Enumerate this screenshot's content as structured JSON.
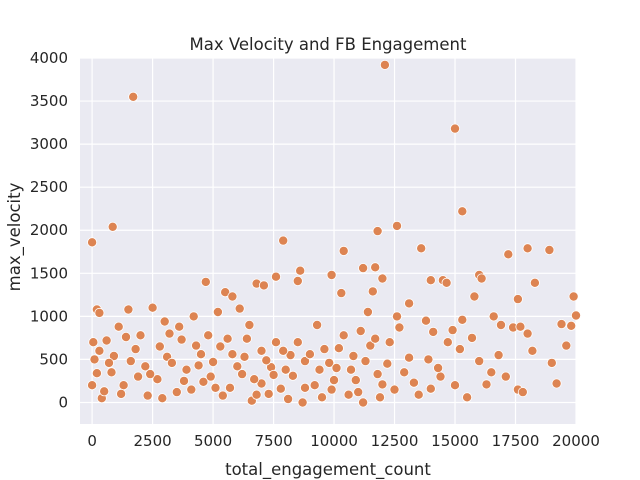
{
  "chart_data": {
    "type": "scatter",
    "title": "Max Velocity and FB Engagement",
    "xlabel": "total_engagement_count",
    "ylabel": "max_velocity",
    "xlim": [
      -500,
      20000
    ],
    "ylim": [
      -250,
      4000
    ],
    "x_ticks": [
      "0",
      "2500",
      "5000",
      "7500",
      "10000",
      "12500",
      "15000",
      "17500",
      "20000"
    ],
    "y_ticks": [
      "0",
      "500",
      "1000",
      "1500",
      "2000",
      "2500",
      "3000",
      "3500",
      "4000"
    ],
    "grid": true,
    "background_color": "#eaeaf2",
    "grid_color": "#ffffff",
    "point_color": "#dd8452",
    "point_edge_color": "#ffffff",
    "points": [
      [
        0,
        1860
      ],
      [
        200,
        1080
      ],
      [
        300,
        1040
      ],
      [
        850,
        2040
      ],
      [
        1700,
        3550
      ],
      [
        12100,
        3920
      ],
      [
        15000,
        3180
      ],
      [
        15300,
        2220
      ],
      [
        7900,
        1880
      ],
      [
        11800,
        1990
      ],
      [
        12600,
        2050
      ],
      [
        13600,
        1790
      ],
      [
        18000,
        1790
      ],
      [
        18900,
        1770
      ],
      [
        17200,
        1720
      ],
      [
        16000,
        1480
      ],
      [
        16100,
        1440
      ],
      [
        10400,
        1760
      ],
      [
        9900,
        1480
      ],
      [
        11200,
        1560
      ],
      [
        11700,
        1570
      ],
      [
        12000,
        1440
      ],
      [
        14500,
        1420
      ],
      [
        14650,
        1390
      ],
      [
        14000,
        1420
      ],
      [
        18300,
        1390
      ],
      [
        17600,
        1200
      ],
      [
        19900,
        1230
      ],
      [
        15800,
        1230
      ],
      [
        4700,
        1400
      ],
      [
        5500,
        1280
      ],
      [
        5800,
        1230
      ],
      [
        6800,
        1380
      ],
      [
        7100,
        1360
      ],
      [
        7600,
        1460
      ],
      [
        8500,
        1410
      ],
      [
        8600,
        1530
      ],
      [
        10300,
        1270
      ],
      [
        11600,
        1290
      ],
      [
        11400,
        1050
      ],
      [
        12600,
        1000
      ],
      [
        13100,
        1150
      ],
      [
        13800,
        950
      ],
      [
        14100,
        820
      ],
      [
        15300,
        960
      ],
      [
        16600,
        1000
      ],
      [
        16900,
        900
      ],
      [
        17400,
        870
      ],
      [
        17700,
        880
      ],
      [
        19400,
        910
      ],
      [
        19800,
        890
      ],
      [
        20000,
        1010
      ],
      [
        13900,
        500
      ],
      [
        14400,
        300
      ],
      [
        15000,
        200
      ],
      [
        15500,
        60
      ],
      [
        16000,
        480
      ],
      [
        16500,
        350
      ],
      [
        17100,
        300
      ],
      [
        17600,
        150
      ],
      [
        18000,
        800
      ],
      [
        18200,
        600
      ],
      [
        19000,
        460
      ],
      [
        19200,
        220
      ],
      [
        19600,
        660
      ],
      [
        17800,
        120
      ],
      [
        16800,
        550
      ],
      [
        15700,
        750
      ],
      [
        14700,
        700
      ],
      [
        12200,
        450
      ],
      [
        12900,
        350
      ],
      [
        13300,
        230
      ],
      [
        12500,
        150
      ],
      [
        11900,
        60
      ],
      [
        11200,
        0
      ],
      [
        10600,
        90
      ],
      [
        9900,
        150
      ],
      [
        9400,
        380
      ],
      [
        8800,
        480
      ],
      [
        8200,
        550
      ],
      [
        7600,
        700
      ],
      [
        7000,
        600
      ],
      [
        6500,
        900
      ],
      [
        6100,
        1090
      ],
      [
        5200,
        1050
      ],
      [
        4800,
        780
      ],
      [
        4200,
        1000
      ],
      [
        3600,
        880
      ],
      [
        3000,
        940
      ],
      [
        2500,
        1100
      ],
      [
        1500,
        1080
      ],
      [
        1100,
        880
      ],
      [
        600,
        720
      ],
      [
        300,
        600
      ],
      [
        100,
        500
      ],
      [
        0,
        200
      ],
      [
        50,
        700
      ],
      [
        400,
        50
      ],
      [
        800,
        350
      ],
      [
        1300,
        200
      ],
      [
        1800,
        620
      ],
      [
        2200,
        420
      ],
      [
        2700,
        270
      ],
      [
        3100,
        530
      ],
      [
        3500,
        120
      ],
      [
        3900,
        380
      ],
      [
        4300,
        660
      ],
      [
        4600,
        240
      ],
      [
        5000,
        470
      ],
      [
        5400,
        80
      ],
      [
        5800,
        560
      ],
      [
        6200,
        330
      ],
      [
        6600,
        20
      ],
      [
        7000,
        220
      ],
      [
        7400,
        410
      ],
      [
        7800,
        160
      ],
      [
        8300,
        310
      ],
      [
        8700,
        0
      ],
      [
        9200,
        200
      ],
      [
        9600,
        620
      ],
      [
        10000,
        260
      ],
      [
        10400,
        780
      ],
      [
        10800,
        540
      ],
      [
        11100,
        830
      ],
      [
        11500,
        660
      ],
      [
        11800,
        330
      ],
      [
        12300,
        700
      ],
      [
        12700,
        870
      ],
      [
        13100,
        520
      ],
      [
        13500,
        90
      ],
      [
        14000,
        160
      ],
      [
        14300,
        400
      ],
      [
        14900,
        840
      ],
      [
        15200,
        620
      ],
      [
        16300,
        210
      ],
      [
        500,
        130
      ],
      [
        900,
        540
      ],
      [
        1400,
        760
      ],
      [
        1900,
        300
      ],
      [
        2300,
        80
      ],
      [
        2800,
        650
      ],
      [
        3300,
        460
      ],
      [
        3700,
        730
      ],
      [
        4100,
        150
      ],
      [
        4500,
        560
      ],
      [
        4900,
        300
      ],
      [
        5300,
        650
      ],
      [
        5700,
        170
      ],
      [
        6000,
        420
      ],
      [
        6400,
        740
      ],
      [
        6800,
        90
      ],
      [
        7200,
        490
      ],
      [
        7500,
        320
      ],
      [
        7900,
        600
      ],
      [
        8100,
        40
      ],
      [
        8500,
        700
      ],
      [
        9000,
        560
      ],
      [
        9300,
        900
      ],
      [
        9800,
        460
      ],
      [
        10200,
        630
      ],
      [
        10700,
        380
      ],
      [
        11000,
        120
      ],
      [
        11300,
        480
      ],
      [
        11700,
        740
      ],
      [
        12000,
        210
      ],
      [
        200,
        340
      ],
      [
        700,
        460
      ],
      [
        1200,
        100
      ],
      [
        1600,
        480
      ],
      [
        2000,
        780
      ],
      [
        2400,
        330
      ],
      [
        2900,
        50
      ],
      [
        3200,
        800
      ],
      [
        3800,
        250
      ],
      [
        4400,
        430
      ],
      [
        5100,
        170
      ],
      [
        5600,
        740
      ],
      [
        6300,
        530
      ],
      [
        6700,
        270
      ],
      [
        7300,
        100
      ],
      [
        8000,
        380
      ],
      [
        8800,
        170
      ],
      [
        9500,
        60
      ],
      [
        10100,
        400
      ],
      [
        10900,
        260
      ]
    ]
  }
}
